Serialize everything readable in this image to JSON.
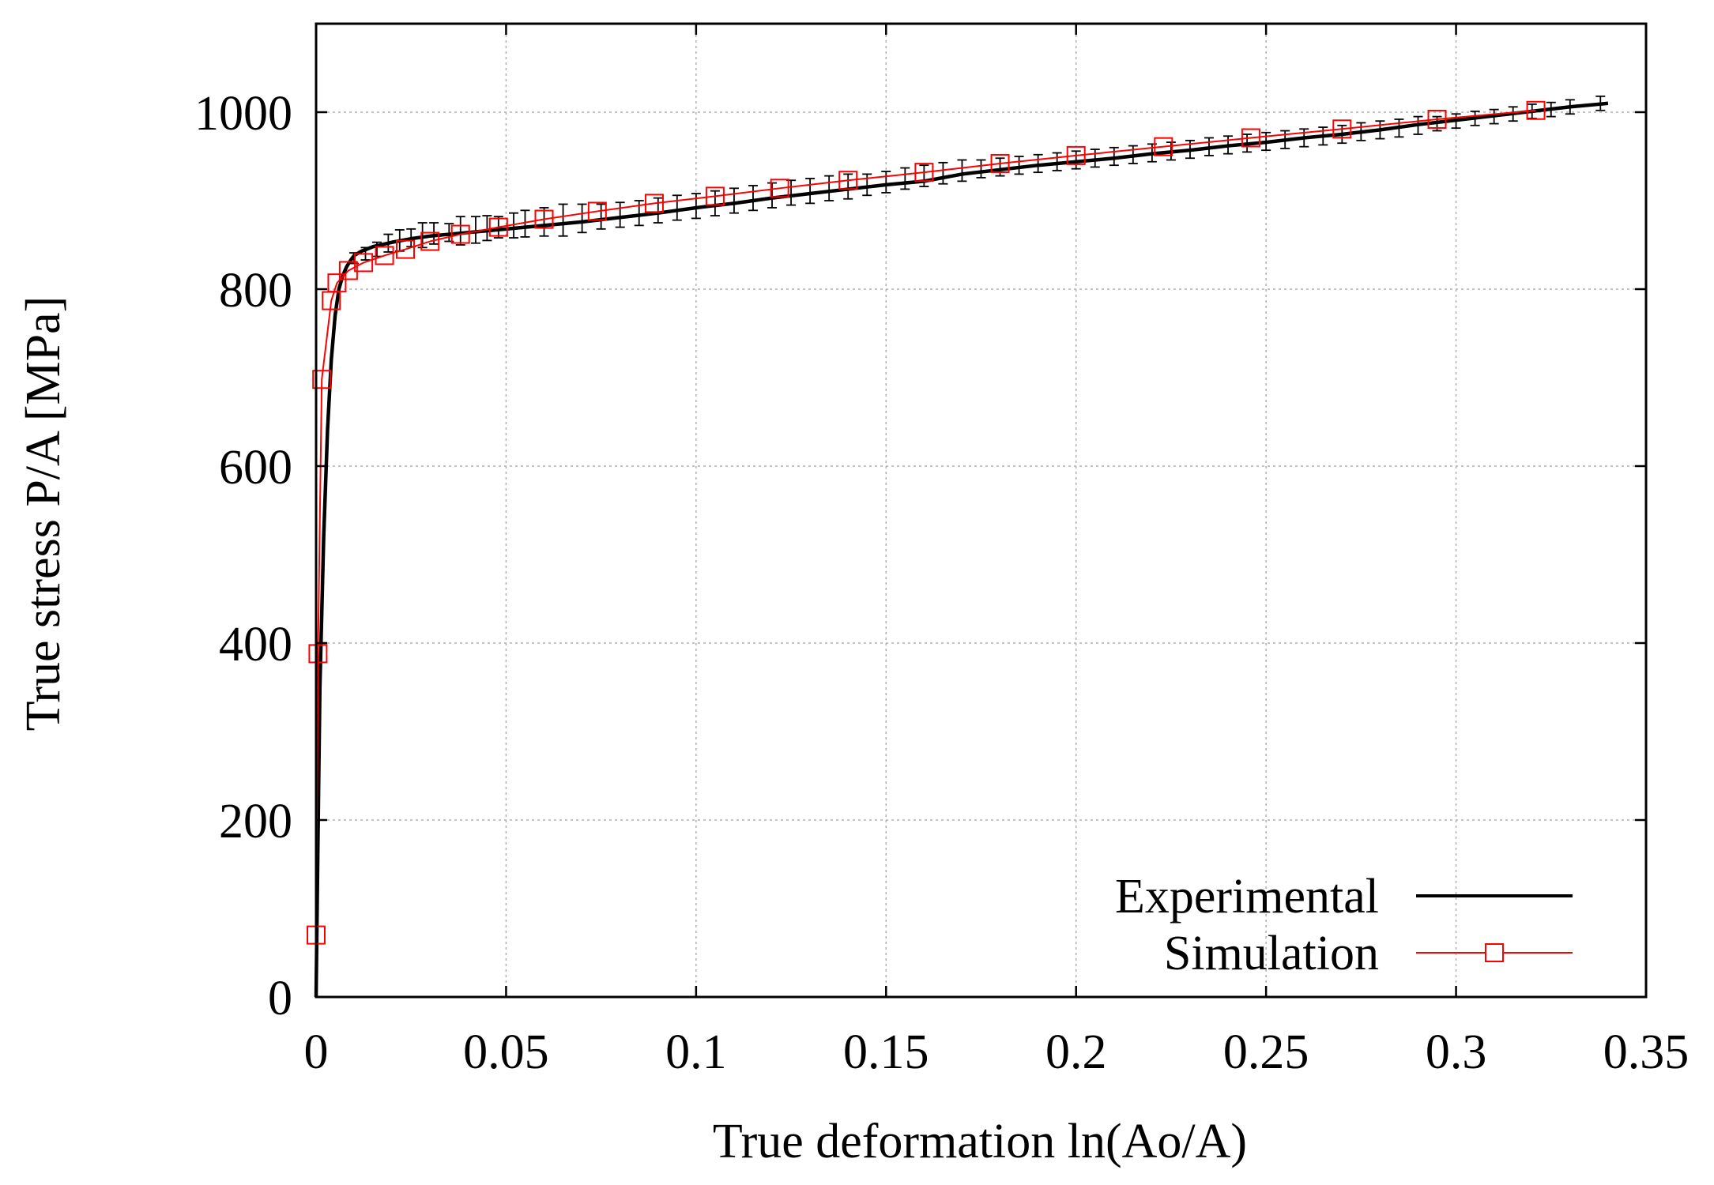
{
  "chart_data": {
    "type": "line",
    "title": "",
    "xlabel": "True deformation ln(Ao/A)",
    "ylabel": "True stress P/A [MPa]",
    "xlim": [
      0,
      0.35
    ],
    "ylim": [
      0,
      1100
    ],
    "grid": true,
    "legend_position": "bottom-right",
    "x_ticks": [
      0,
      0.05,
      0.1,
      0.15,
      0.2,
      0.25,
      0.3,
      0.35
    ],
    "x_tick_labels": [
      "0",
      "0.05",
      "0.1",
      "0.15",
      "0.2",
      "0.25",
      "0.3",
      "0.35"
    ],
    "y_ticks": [
      0,
      200,
      400,
      600,
      800,
      1000
    ],
    "y_tick_labels": [
      "0",
      "200",
      "400",
      "600",
      "800",
      "1000"
    ],
    "series": [
      {
        "name": "Experimental",
        "color": "#000000",
        "marker": "none",
        "error_bars": true,
        "x": [
          0,
          0.0005,
          0.001,
          0.002,
          0.003,
          0.004,
          0.005,
          0.006,
          0.007,
          0.008,
          0.009,
          0.01,
          0.012,
          0.015,
          0.02,
          0.025,
          0.03,
          0.035,
          0.04,
          0.045,
          0.05,
          0.06,
          0.07,
          0.08,
          0.09,
          0.1,
          0.11,
          0.12,
          0.13,
          0.14,
          0.15,
          0.16,
          0.17,
          0.18,
          0.19,
          0.2,
          0.21,
          0.22,
          0.23,
          0.24,
          0.25,
          0.26,
          0.27,
          0.28,
          0.29,
          0.3,
          0.31,
          0.32,
          0.33,
          0.34
        ],
        "y": [
          0,
          180,
          350,
          520,
          640,
          720,
          770,
          800,
          815,
          825,
          832,
          838,
          843,
          848,
          853,
          857,
          860,
          862,
          864,
          866,
          868,
          872,
          876,
          881,
          886,
          892,
          897,
          903,
          908,
          913,
          918,
          922,
          930,
          935,
          940,
          944,
          948,
          953,
          957,
          962,
          966,
          971,
          975,
          980,
          986,
          991,
          996,
          1001,
          1006,
          1010
        ],
        "error_x": [
          0.01,
          0.013,
          0.016,
          0.019,
          0.022,
          0.025,
          0.028,
          0.031,
          0.035,
          0.038,
          0.042,
          0.045,
          0.048,
          0.052,
          0.055,
          0.06,
          0.065,
          0.07,
          0.075,
          0.08,
          0.085,
          0.09,
          0.095,
          0.1,
          0.105,
          0.11,
          0.115,
          0.12,
          0.125,
          0.13,
          0.135,
          0.14,
          0.145,
          0.15,
          0.155,
          0.16,
          0.165,
          0.17,
          0.175,
          0.18,
          0.185,
          0.19,
          0.195,
          0.2,
          0.205,
          0.21,
          0.215,
          0.22,
          0.225,
          0.23,
          0.235,
          0.24,
          0.245,
          0.25,
          0.255,
          0.26,
          0.265,
          0.27,
          0.275,
          0.28,
          0.285,
          0.29,
          0.295,
          0.3,
          0.305,
          0.31,
          0.315,
          0.32,
          0.325,
          0.33,
          0.338
        ],
        "error_y": [
          835,
          840,
          845,
          852,
          855,
          858,
          861,
          863,
          864,
          866,
          867,
          869,
          870,
          872,
          874,
          876,
          878,
          880,
          882,
          884,
          886,
          889,
          892,
          894,
          897,
          900,
          903,
          906,
          909,
          911,
          914,
          916,
          918,
          921,
          925,
          928,
          931,
          934,
          936,
          938,
          940,
          942,
          944,
          946,
          948,
          950,
          952,
          954,
          956,
          958,
          961,
          963,
          965,
          967,
          969,
          971,
          973,
          975,
          978,
          980,
          982,
          985,
          987,
          990,
          993,
          995,
          998,
          1001,
          1003,
          1006,
          1010
        ],
        "error_size": [
          6,
          7,
          8,
          10,
          12,
          10,
          14,
          12,
          10,
          16,
          15,
          14,
          12,
          14,
          15,
          16,
          18,
          16,
          14,
          14,
          14,
          14,
          14,
          14,
          14,
          14,
          14,
          14,
          14,
          14,
          14,
          14,
          12,
          12,
          12,
          12,
          12,
          12,
          10,
          10,
          10,
          10,
          10,
          10,
          10,
          10,
          10,
          10,
          10,
          10,
          10,
          10,
          10,
          10,
          10,
          10,
          10,
          10,
          10,
          10,
          10,
          10,
          8,
          8,
          8,
          8,
          8,
          8,
          8,
          8,
          8
        ]
      },
      {
        "name": "Simulation",
        "color": "#ff0000",
        "marker": "square",
        "x": [
          0,
          0.0005,
          0.0015,
          0.004,
          0.0055,
          0.0085,
          0.0125,
          0.018,
          0.0235,
          0.03,
          0.038,
          0.048,
          0.06,
          0.074,
          0.089,
          0.105,
          0.122,
          0.14,
          0.16,
          0.18,
          0.2,
          0.223,
          0.246,
          0.27,
          0.295,
          0.321
        ],
        "y": [
          70,
          388,
          698,
          787,
          807,
          821,
          830,
          838,
          845,
          854,
          862,
          870,
          879,
          888,
          897,
          905,
          914,
          923,
          932,
          942,
          951,
          961,
          971,
          981,
          992,
          1002
        ]
      }
    ]
  }
}
